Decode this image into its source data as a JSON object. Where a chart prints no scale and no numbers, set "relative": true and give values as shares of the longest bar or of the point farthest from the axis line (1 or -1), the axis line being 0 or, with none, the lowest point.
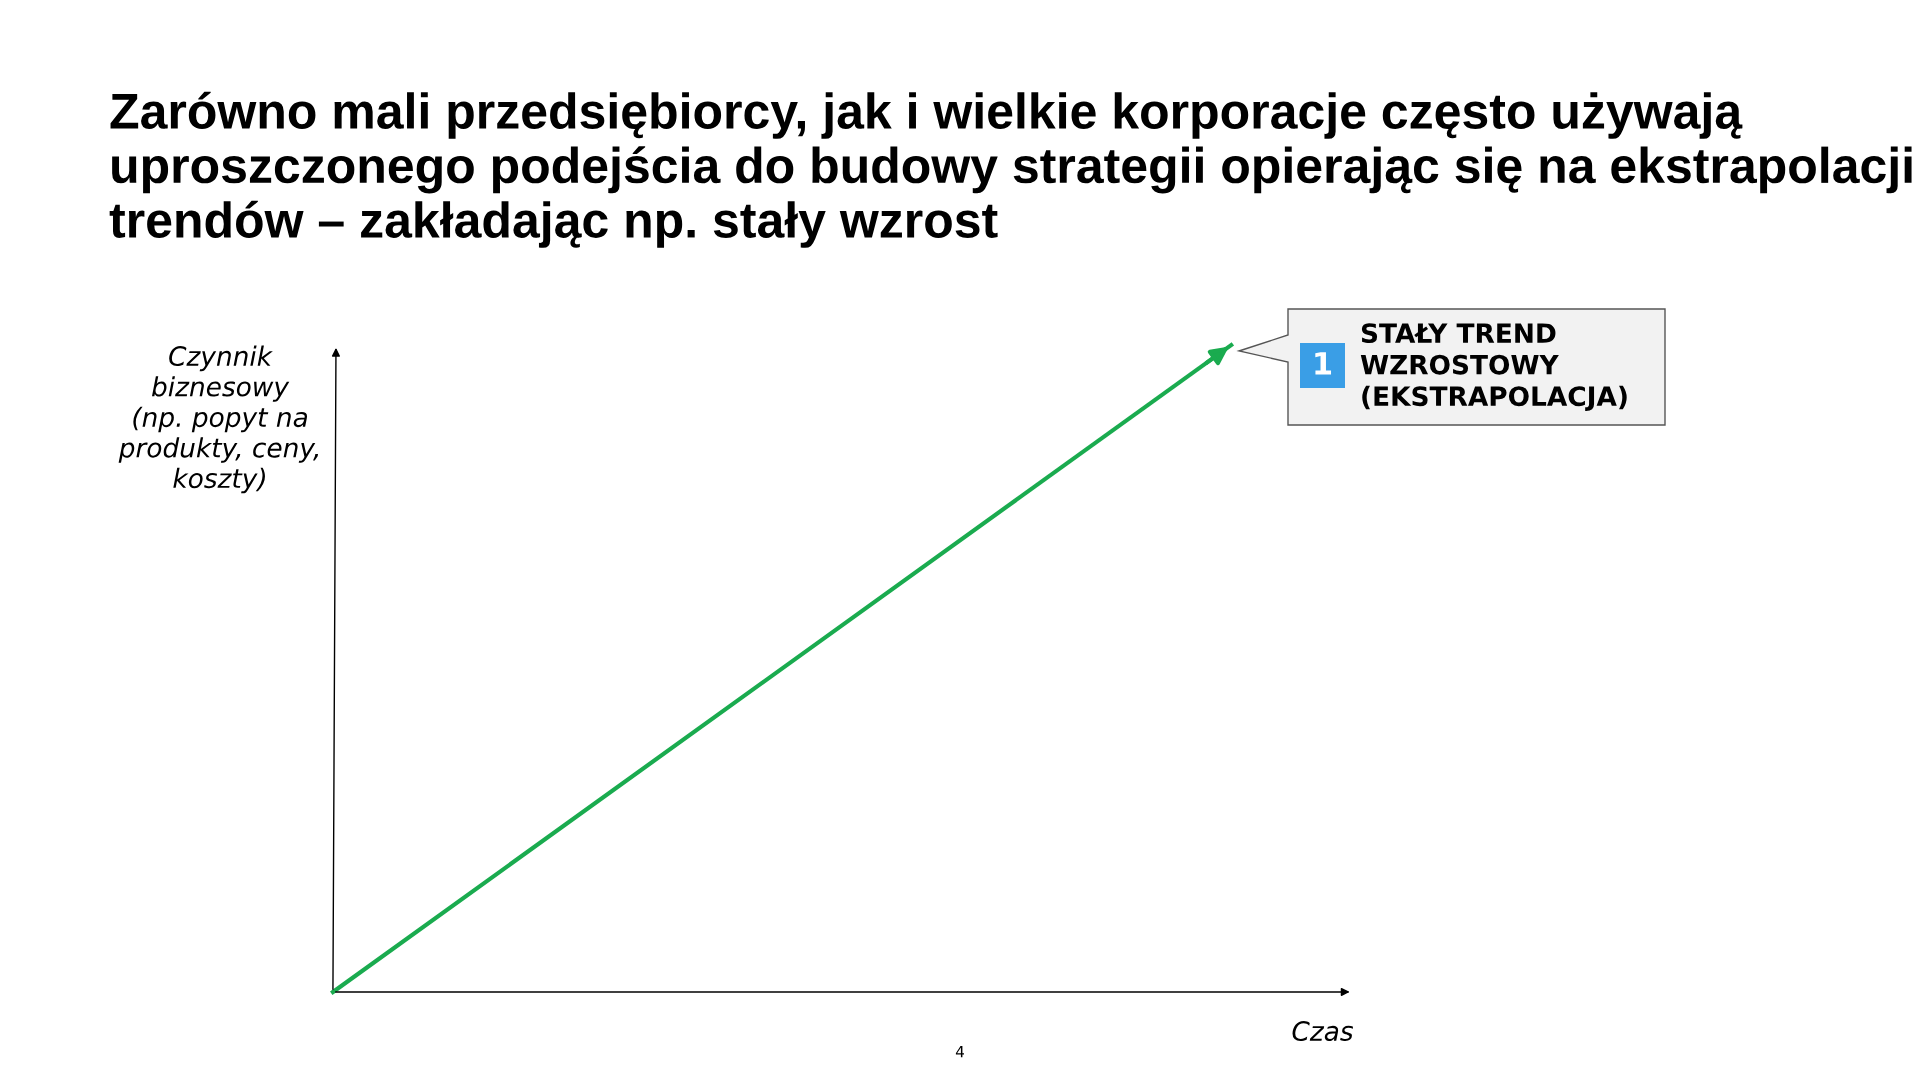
{
  "chart_data": {
    "type": "line",
    "relative": true,
    "title": "Zarówno mali przedsiębiorcy, jak i wielkie korporacje często używają uproszczonego podejścia do budowy strategii opierając się na ekstrapolacji trendów – zakładając np. stały wzrost",
    "xlabel": "Czas",
    "ylabel": "Czynnik\nbiznesowy\n(np. popyt na\nprodukty, ceny,\nkoszty)",
    "categories": [
      null,
      null
    ],
    "series": [
      {
        "color": "#1aab4f",
        "values": [
          0,
          1
        ]
      }
    ],
    "annotations": [
      "1",
      "STAŁY TREND\nWZROSTOWY\n(EKSTRAPOLACJA)",
      "4"
    ],
    "marker": "none",
    "line_style": "solid",
    "legend": false
  }
}
